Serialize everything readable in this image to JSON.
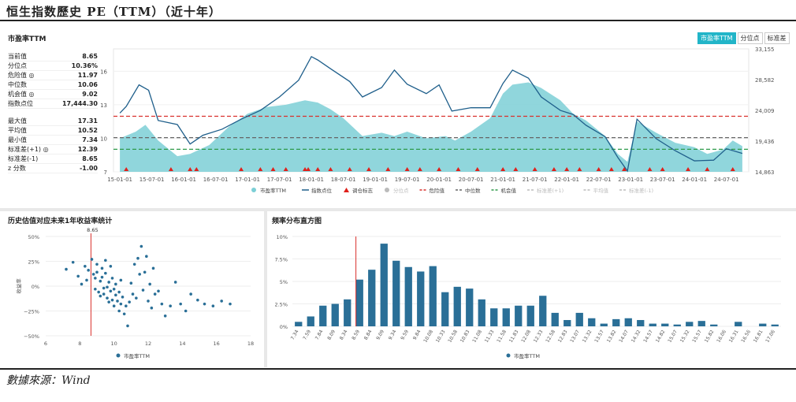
{
  "header": {
    "title": "恒生指数歷史 PE（TTM）（近十年）"
  },
  "footer": {
    "source": "數據來源：Wind"
  },
  "main_panel": {
    "title": "市盈率TTM",
    "tabs": [
      {
        "label": "市盈率TTM",
        "active": true
      },
      {
        "label": "分位点",
        "active": false
      },
      {
        "label": "标准差",
        "active": false
      }
    ]
  },
  "stats_group1": [
    {
      "label": "当前值",
      "value": "8.65"
    },
    {
      "label": "分位点",
      "value": "10.36%"
    },
    {
      "label": "危险值 ◎",
      "value": "11.97"
    },
    {
      "label": "中位数",
      "value": "10.06"
    },
    {
      "label": "机会值 ◎",
      "value": "9.02"
    },
    {
      "label": "指数点位",
      "value": "17,444.30"
    }
  ],
  "stats_group2": [
    {
      "label": "最大值",
      "value": "17.31"
    },
    {
      "label": "平均值",
      "value": "10.52"
    },
    {
      "label": "最小值",
      "value": "7.34"
    },
    {
      "label": "标准差(+1) ◎",
      "value": "12.39"
    },
    {
      "label": "标准差(-1)",
      "value": "8.65"
    },
    {
      "label": "z 分数",
      "value": "-1.00"
    }
  ],
  "colors": {
    "area": "#7ccfd6",
    "line": "#1f5f8b",
    "danger": "#d9302c",
    "median": "#666666",
    "opportunity": "#2e9a4a",
    "bar": "#2a6f97",
    "dot": "#2a6f97",
    "marker": "#e0201b",
    "accent": "#22b5c8"
  },
  "chart_data": [
    {
      "type": "area",
      "title": "市盈率TTM",
      "y_left_ticks": [
        "7",
        "10",
        "13",
        "16"
      ],
      "y_right_ticks": [
        "14,863",
        "19,436",
        "24,009",
        "28,582",
        "33,155"
      ],
      "x_ticks": [
        "15-01-01",
        "15-07-01",
        "16-01-01",
        "16-07-01",
        "17-01-01",
        "17-07-01",
        "18-01-01",
        "18-07-01",
        "19-01-01",
        "19-07-01",
        "20-01-01",
        "20-07-01",
        "21-01-01",
        "21-07-01",
        "22-01-01",
        "22-07-01",
        "23-01-01",
        "23-07-01",
        "24-01-01",
        "24-07-01"
      ],
      "ylim_left": [
        7,
        18
      ],
      "ylim_right": [
        14863,
        33155
      ],
      "pe_series": {
        "name": "市盈率TTM",
        "x": [
          2015.0,
          2015.25,
          2015.4,
          2015.6,
          2015.9,
          2016.1,
          2016.4,
          2016.7,
          2017.0,
          2017.3,
          2017.6,
          2017.9,
          2018.1,
          2018.3,
          2018.5,
          2018.8,
          2019.1,
          2019.3,
          2019.5,
          2019.8,
          2020.1,
          2020.25,
          2020.5,
          2020.8,
          2021.0,
          2021.15,
          2021.4,
          2021.6,
          2021.9,
          2022.1,
          2022.3,
          2022.6,
          2022.8,
          2022.95,
          2023.1,
          2023.4,
          2023.7,
          2024.0,
          2024.2,
          2024.45,
          2024.6,
          2024.75
        ],
        "values": [
          10.0,
          10.6,
          11.2,
          9.8,
          8.4,
          8.6,
          9.4,
          11.0,
          12.2,
          12.8,
          13.0,
          13.4,
          13.2,
          12.6,
          11.8,
          10.2,
          10.5,
          10.2,
          10.6,
          10.0,
          10.2,
          9.8,
          10.6,
          11.8,
          14.0,
          14.8,
          15.0,
          14.5,
          13.4,
          12.2,
          11.6,
          10.2,
          8.6,
          7.9,
          11.5,
          10.5,
          9.6,
          9.2,
          8.6,
          9.0,
          9.8,
          9.3
        ]
      },
      "index_series": {
        "name": "指数点位",
        "x": [
          2015.0,
          2015.1,
          2015.3,
          2015.45,
          2015.6,
          2015.9,
          2016.1,
          2016.3,
          2016.6,
          2016.9,
          2017.2,
          2017.5,
          2017.8,
          2018.0,
          2018.1,
          2018.3,
          2018.6,
          2018.8,
          2019.1,
          2019.3,
          2019.5,
          2019.8,
          2020.0,
          2020.2,
          2020.5,
          2020.8,
          2021.0,
          2021.15,
          2021.4,
          2021.6,
          2021.9,
          2022.1,
          2022.3,
          2022.6,
          2022.8,
          2022.95,
          2023.1,
          2023.4,
          2023.7,
          2024.0,
          2024.3,
          2024.5,
          2024.75
        ],
        "values": [
          23600,
          24600,
          27800,
          27000,
          22500,
          21900,
          19000,
          20300,
          21200,
          22700,
          24000,
          26000,
          28500,
          32000,
          31500,
          30200,
          28300,
          26000,
          27400,
          30000,
          27900,
          26500,
          27800,
          23900,
          24400,
          24400,
          28000,
          30000,
          28800,
          26000,
          24000,
          23400,
          21800,
          20100,
          17000,
          15000,
          22700,
          19800,
          18000,
          16500,
          16600,
          18300,
          17600
        ]
      },
      "danger_line": 11.97,
      "median_line": 10.06,
      "opportunity_line": 9.02,
      "markers_x": [
        2015.1,
        2015.8,
        2016.1,
        2016.2,
        2016.9,
        2017.2,
        2017.4,
        2017.6,
        2017.9,
        2017.95,
        2018.1,
        2018.3,
        2018.6,
        2018.9,
        2019.2,
        2019.5,
        2019.7,
        2020.0,
        2020.3,
        2020.6,
        2021.0,
        2021.2,
        2021.5,
        2021.8,
        2022.0,
        2022.2,
        2022.5,
        2022.7,
        2022.9,
        2023.3,
        2023.5,
        2023.9,
        2024.2,
        2024.6
      ],
      "legend": [
        "市盈率TTM",
        "指数点位",
        "调仓标志",
        "分位点",
        "危险值",
        "中位数",
        "机会值",
        "标准差(+1)",
        "平均值",
        "标准差(-1)"
      ]
    },
    {
      "type": "scatter",
      "title": "历史估值对应未来1年收益率统计",
      "xlabel": "",
      "ylabel": "收益率",
      "x_ticks": [
        "6",
        "8",
        "10",
        "12",
        "14",
        "16",
        "18"
      ],
      "y_ticks": [
        "50%",
        "25%",
        "0%",
        "−25%",
        "−50%"
      ],
      "xlim": [
        6,
        18
      ],
      "ylim": [
        -50,
        50
      ],
      "vline": {
        "x": 8.65,
        "label": "8.65"
      },
      "legend": "市盈率TTM",
      "points": [
        [
          7.2,
          17
        ],
        [
          7.6,
          24
        ],
        [
          7.9,
          10
        ],
        [
          8.1,
          2
        ],
        [
          8.3,
          20
        ],
        [
          8.4,
          6
        ],
        [
          8.5,
          16
        ],
        [
          8.7,
          27
        ],
        [
          8.8,
          12
        ],
        [
          8.9,
          8
        ],
        [
          8.9,
          -3
        ],
        [
          9.0,
          22
        ],
        [
          9.0,
          14
        ],
        [
          9.1,
          -6
        ],
        [
          9.2,
          5
        ],
        [
          9.2,
          -10
        ],
        [
          9.3,
          18
        ],
        [
          9.3,
          9
        ],
        [
          9.4,
          -2
        ],
        [
          9.4,
          -8
        ],
        [
          9.5,
          26
        ],
        [
          9.5,
          13
        ],
        [
          9.6,
          -1
        ],
        [
          9.6,
          -12
        ],
        [
          9.7,
          4
        ],
        [
          9.7,
          -16
        ],
        [
          9.8,
          20
        ],
        [
          9.8,
          -5
        ],
        [
          9.9,
          8
        ],
        [
          9.9,
          -14
        ],
        [
          10.0,
          -3
        ],
        [
          10.0,
          -20
        ],
        [
          10.1,
          2
        ],
        [
          10.1,
          -9
        ],
        [
          10.2,
          -15
        ],
        [
          10.3,
          -6
        ],
        [
          10.3,
          -25
        ],
        [
          10.4,
          -18
        ],
        [
          10.4,
          6
        ],
        [
          10.5,
          -11
        ],
        [
          10.6,
          -28
        ],
        [
          10.7,
          -20
        ],
        [
          10.8,
          -40
        ],
        [
          10.9,
          -16
        ],
        [
          11.0,
          3
        ],
        [
          11.1,
          -8
        ],
        [
          11.2,
          22
        ],
        [
          11.3,
          -12
        ],
        [
          11.4,
          28
        ],
        [
          11.5,
          12
        ],
        [
          11.6,
          40
        ],
        [
          11.7,
          -4
        ],
        [
          11.8,
          14
        ],
        [
          11.9,
          30
        ],
        [
          12.0,
          -15
        ],
        [
          12.1,
          2
        ],
        [
          12.2,
          -22
        ],
        [
          12.3,
          18
        ],
        [
          12.4,
          -8
        ],
        [
          12.6,
          -5
        ],
        [
          12.8,
          -18
        ],
        [
          13.0,
          -30
        ],
        [
          13.3,
          -20
        ],
        [
          13.6,
          4
        ],
        [
          13.9,
          -18
        ],
        [
          14.2,
          -25
        ],
        [
          14.5,
          -8
        ],
        [
          14.9,
          -14
        ],
        [
          15.3,
          -18
        ],
        [
          15.8,
          -20
        ],
        [
          16.3,
          -15
        ],
        [
          16.8,
          -18
        ]
      ]
    },
    {
      "type": "bar",
      "title": "频率分布直方图",
      "ylim": [
        0,
        10
      ],
      "y_ticks": [
        "10%",
        "7.5%",
        "5%",
        "2.5%",
        "0%"
      ],
      "legend": "市盈率TTM",
      "vline_index": 5,
      "categories": [
        "7.34",
        "7.59",
        "7.84",
        "8.09",
        "8.34",
        "8.59",
        "8.84",
        "9.09",
        "9.34",
        "9.59",
        "9.84",
        "10.08",
        "10.33",
        "10.58",
        "10.83",
        "11.08",
        "11.33",
        "11.58",
        "11.83",
        "12.08",
        "12.33",
        "12.58",
        "12.83",
        "13.07",
        "13.32",
        "13.57",
        "13.82",
        "14.07",
        "14.32",
        "14.57",
        "14.82",
        "15.07",
        "15.32",
        "15.57",
        "15.82",
        "16.06",
        "16.31",
        "16.56",
        "16.81",
        "17.06"
      ],
      "values": [
        0.5,
        1.1,
        2.3,
        2.5,
        3.0,
        5.2,
        6.3,
        9.2,
        7.3,
        6.6,
        6.1,
        6.7,
        3.8,
        4.4,
        4.2,
        3.0,
        2.0,
        2.0,
        2.3,
        2.3,
        3.4,
        1.5,
        0.7,
        1.5,
        0.9,
        0.3,
        0.8,
        0.9,
        0.7,
        0.3,
        0.3,
        0.2,
        0.5,
        0.6,
        0.2,
        0,
        0.5,
        0,
        0.3,
        0.2
      ]
    }
  ]
}
